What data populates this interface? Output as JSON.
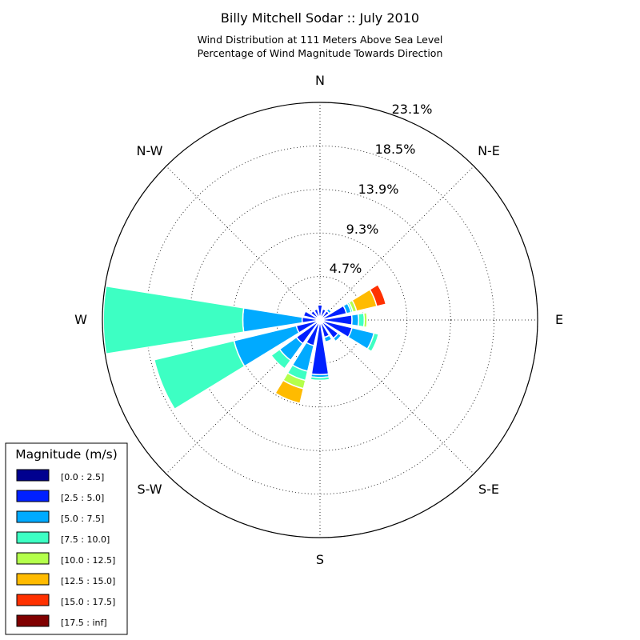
{
  "chart_data": {
    "type": "windrose",
    "title": "Billy Mitchell Sodar :: July 2010",
    "subtitle_lines": [
      "Wind Distribution at 111 Meters Above Sea Level",
      "Percentage of Wind Magnitude Towards Direction"
    ],
    "directions": [
      "N",
      "N-E",
      "E",
      "S-E",
      "S",
      "S-W",
      "W",
      "N-W"
    ],
    "radial_ticks": [
      "4.7%",
      "9.3%",
      "13.9%",
      "18.5%",
      "23.1%"
    ],
    "radial_tick_values": [
      4.62,
      9.24,
      13.86,
      18.48,
      23.1
    ],
    "r_max": 23.1,
    "grid": true,
    "sector_width_deg": 22.5,
    "legend": {
      "title": "Magnitude (m/s)",
      "placement": "lower-left",
      "bins": [
        {
          "label": "[0.0 : 2.5]",
          "color": "#00008f"
        },
        {
          "label": "[2.5 : 5.0]",
          "color": "#0020ff"
        },
        {
          "label": "[5.0 : 7.5]",
          "color": "#00aaff"
        },
        {
          "label": "[7.5 : 10.0]",
          "color": "#3dffc3"
        },
        {
          "label": "[10.0 : 12.5]",
          "color": "#b4ff4b"
        },
        {
          "label": "[12.5 : 15.0]",
          "color": "#ffbb00"
        },
        {
          "label": "[15.0 : 17.5]",
          "color": "#ff3100"
        },
        {
          "label": "[17.5 : inf]",
          "color": "#800000"
        }
      ]
    },
    "sectors": [
      {
        "direction_deg": 0,
        "cumulative": [
          0.4,
          1.6,
          1.6,
          1.6,
          1.6,
          1.6,
          1.6,
          1.6
        ]
      },
      {
        "direction_deg": 22.5,
        "cumulative": [
          0.3,
          1.2,
          1.2,
          1.2,
          1.2,
          1.2,
          1.2,
          1.2
        ]
      },
      {
        "direction_deg": 45,
        "cumulative": [
          0.3,
          1.2,
          1.5,
          1.5,
          1.5,
          1.5,
          1.5,
          1.5
        ]
      },
      {
        "direction_deg": 67.5,
        "cumulative": [
          0.4,
          2.9,
          3.4,
          3.6,
          4.0,
          6.2,
          7.2,
          7.2
        ]
      },
      {
        "direction_deg": 90,
        "cumulative": [
          0.4,
          3.4,
          4.1,
          4.7,
          5.0,
          5.0,
          5.0,
          5.0
        ]
      },
      {
        "direction_deg": 112.5,
        "cumulative": [
          0.4,
          3.5,
          5.9,
          6.4,
          6.4,
          6.4,
          6.4,
          6.4
        ]
      },
      {
        "direction_deg": 135,
        "cumulative": [
          0.4,
          2.4,
          2.8,
          2.8,
          2.8,
          2.8,
          2.8,
          2.8
        ]
      },
      {
        "direction_deg": 157.5,
        "cumulative": [
          0.4,
          1.9,
          2.4,
          2.4,
          2.4,
          2.4,
          2.4,
          2.4
        ]
      },
      {
        "direction_deg": 180,
        "cumulative": [
          0.4,
          5.8,
          6.1,
          6.4,
          6.4,
          6.4,
          6.4,
          6.4
        ]
      },
      {
        "direction_deg": 202.5,
        "cumulative": [
          0.4,
          2.8,
          5.6,
          6.6,
          7.5,
          9.1,
          9.1,
          9.1
        ]
      },
      {
        "direction_deg": 225,
        "cumulative": [
          0.4,
          3.1,
          5.3,
          6.4,
          6.4,
          6.4,
          6.4,
          6.4
        ]
      },
      {
        "direction_deg": 247.5,
        "cumulative": [
          0.4,
          2.6,
          9.4,
          18.1,
          18.1,
          18.1,
          18.1,
          18.1
        ]
      },
      {
        "direction_deg": 270,
        "cumulative": [
          0.4,
          1.9,
          8.2,
          23.0,
          23.0,
          23.0,
          23.0,
          23.0
        ]
      },
      {
        "direction_deg": 292.5,
        "cumulative": [
          0.4,
          1.8,
          1.8,
          1.8,
          1.8,
          1.8,
          1.8,
          1.8
        ]
      },
      {
        "direction_deg": 315,
        "cumulative": [
          0.4,
          1.2,
          1.2,
          1.2,
          1.2,
          1.2,
          1.2,
          1.2
        ]
      },
      {
        "direction_deg": 337.5,
        "cumulative": [
          0.4,
          1.2,
          1.2,
          1.2,
          1.2,
          1.2,
          1.2,
          1.2
        ]
      }
    ]
  }
}
